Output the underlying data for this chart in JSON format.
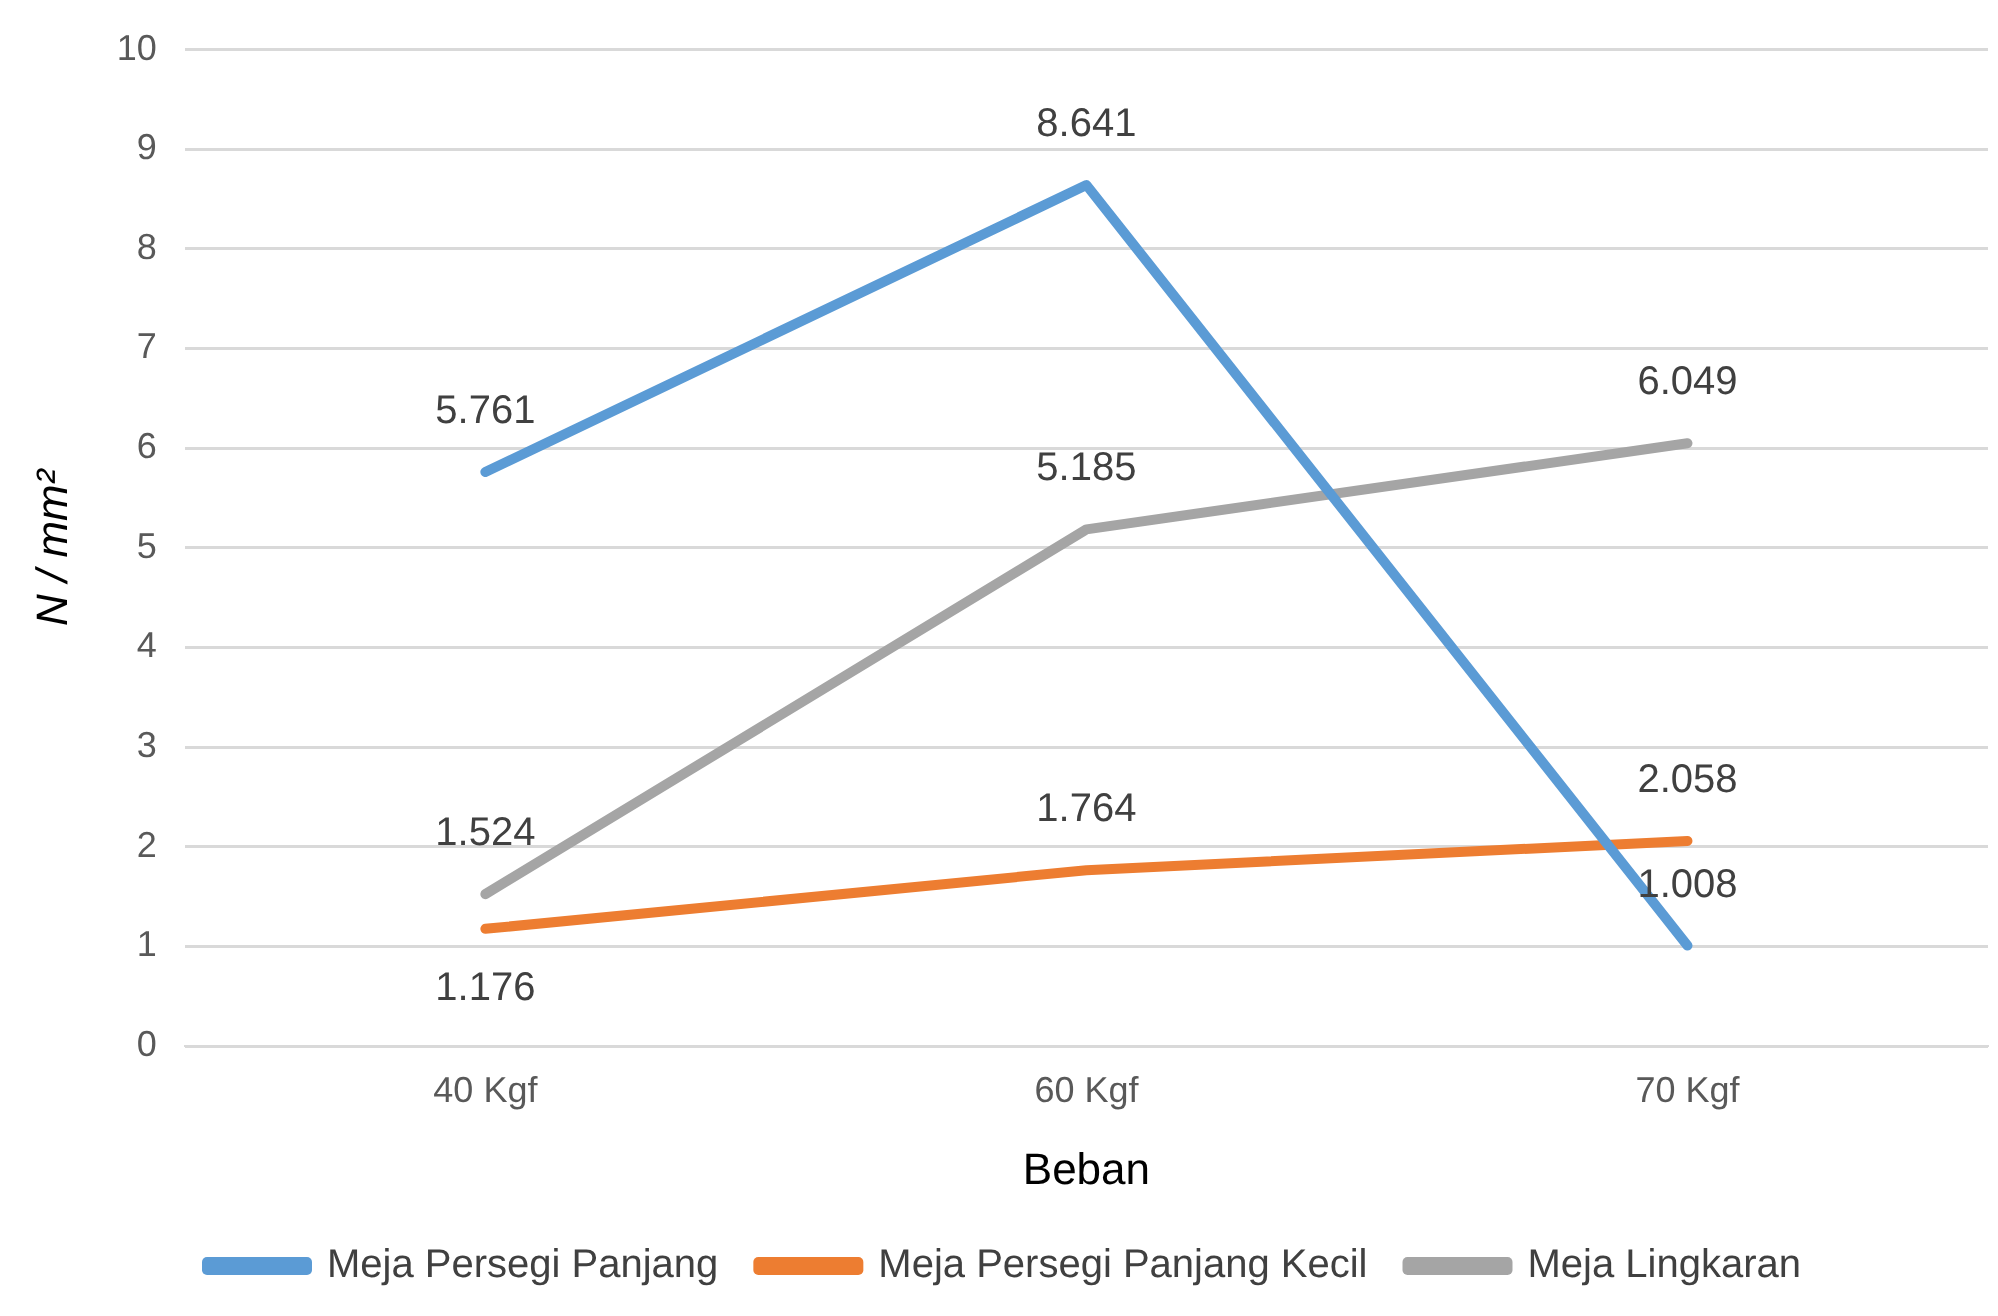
{
  "chart_data": {
    "type": "line",
    "xlabel": "Beban",
    "ylabel": "N / mm²",
    "categories": [
      "40 Kgf",
      "60 Kgf",
      "70 Kgf"
    ],
    "series": [
      {
        "name": "Meja Persegi Panjang",
        "color": "#5b9bd5",
        "values": [
          5.761,
          8.641,
          1.008
        ]
      },
      {
        "name": "Meja Persegi Panjang Kecil",
        "color": "#ed7d31",
        "values": [
          1.176,
          1.764,
          2.058
        ]
      },
      {
        "name": "Meja Lingkaran",
        "color": "#a5a5a5",
        "values": [
          1.524,
          5.185,
          6.049
        ]
      }
    ],
    "ylim": [
      0,
      10
    ],
    "yticks": [
      0,
      1,
      2,
      3,
      4,
      5,
      6,
      7,
      8,
      9,
      10
    ],
    "grid": "y",
    "legend": "bottom",
    "marker": "none",
    "line_style": "solid",
    "data_labels": true
  }
}
